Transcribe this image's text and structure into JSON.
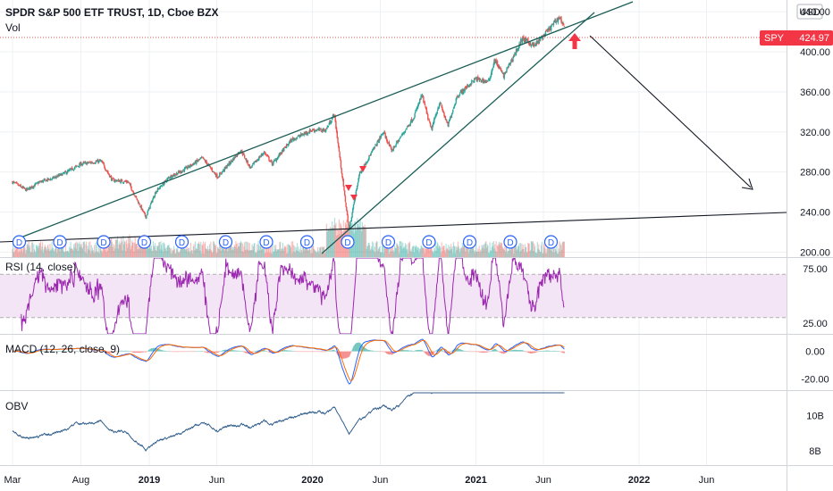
{
  "header": {
    "symbol_title": "SPDR S&P 500 ETF TRUST, 1D, Cboe BZX",
    "volume_label": "Vol",
    "currency": "USD"
  },
  "price_tag": {
    "symbol": "SPY",
    "value": "424.97"
  },
  "colors": {
    "up": "#26a69a",
    "down": "#ef5350",
    "rsi": "#9c27b0",
    "rsi_band": "#f3e5f5",
    "macd": "#2962ff",
    "signal": "#ff6d00",
    "obv": "#2f5d8c",
    "trendline": "#1b5e57",
    "dividend": "#2962ff",
    "grid": "#eef0f3"
  },
  "chart_data": [
    {
      "type": "candlestick",
      "pane": "price",
      "ylim": [
        195,
        450
      ],
      "y_ticks": [
        "440.00",
        "400.00",
        "360.00",
        "320.00",
        "280.00",
        "240.00",
        "200.00"
      ],
      "x_ticks": [
        "Mar",
        "Aug",
        "2019",
        "Jun",
        "2020",
        "Jun",
        "2021",
        "Jun",
        "2022",
        "Jun"
      ],
      "close_path": [
        [
          "2018-03-01",
          270
        ],
        [
          "2018-04-01",
          262
        ],
        [
          "2018-05-01",
          270
        ],
        [
          "2018-06-01",
          274
        ],
        [
          "2018-07-01",
          280
        ],
        [
          "2018-08-01",
          288
        ],
        [
          "2018-09-15",
          291
        ],
        [
          "2018-10-10",
          272
        ],
        [
          "2018-11-15",
          270
        ],
        [
          "2018-12-24",
          235
        ],
        [
          "2019-01-15",
          260
        ],
        [
          "2019-02-15",
          275
        ],
        [
          "2019-03-15",
          281
        ],
        [
          "2019-04-30",
          294
        ],
        [
          "2019-06-03",
          275
        ],
        [
          "2019-07-25",
          302
        ],
        [
          "2019-08-15",
          284
        ],
        [
          "2019-09-15",
          300
        ],
        [
          "2019-10-03",
          288
        ],
        [
          "2019-11-15",
          312
        ],
        [
          "2019-12-31",
          322
        ],
        [
          "2020-01-31",
          322
        ],
        [
          "2020-02-19",
          338
        ],
        [
          "2020-03-23",
          222
        ],
        [
          "2020-04-15",
          278
        ],
        [
          "2020-06-08",
          320
        ],
        [
          "2020-06-26",
          301
        ],
        [
          "2020-08-15",
          335
        ],
        [
          "2020-09-02",
          357
        ],
        [
          "2020-09-23",
          322
        ],
        [
          "2020-10-12",
          350
        ],
        [
          "2020-10-30",
          326
        ],
        [
          "2020-11-20",
          356
        ],
        [
          "2020-12-31",
          373
        ],
        [
          "2021-01-29",
          370
        ],
        [
          "2021-02-12",
          392
        ],
        [
          "2021-03-04",
          376
        ],
        [
          "2021-04-15",
          413
        ],
        [
          "2021-05-12",
          406
        ],
        [
          "2021-06-15",
          423
        ],
        [
          "2021-07-06",
          435
        ],
        [
          "2021-07-19",
          424.97
        ]
      ],
      "volume_max_m": 390
    },
    {
      "type": "line",
      "pane": "rsi",
      "title": "RSI (14, close)",
      "band": [
        30,
        70
      ],
      "ylim": [
        15,
        85
      ],
      "y_ticks": [
        "75.00",
        "25.00"
      ]
    },
    {
      "type": "line",
      "pane": "macd",
      "title": "MACD (12, 26, close, 9)",
      "ylim": [
        -28,
        12
      ],
      "y_ticks": [
        "0.00",
        "-20.00"
      ]
    },
    {
      "type": "line",
      "pane": "obv",
      "title": "OBV",
      "ylim": [
        7.2,
        11.4
      ],
      "y_ticks": [
        "10B",
        "8B"
      ]
    }
  ],
  "annotations": {
    "dividend_marker": "D",
    "dividend_dates": [
      "2018-03-16",
      "2018-06-15",
      "2018-09-21",
      "2018-12-21",
      "2019-03-15",
      "2019-06-21",
      "2019-09-20",
      "2019-12-20",
      "2020-03-20",
      "2020-06-19",
      "2020-09-18",
      "2020-12-18",
      "2021-03-19",
      "2021-06-18"
    ]
  }
}
